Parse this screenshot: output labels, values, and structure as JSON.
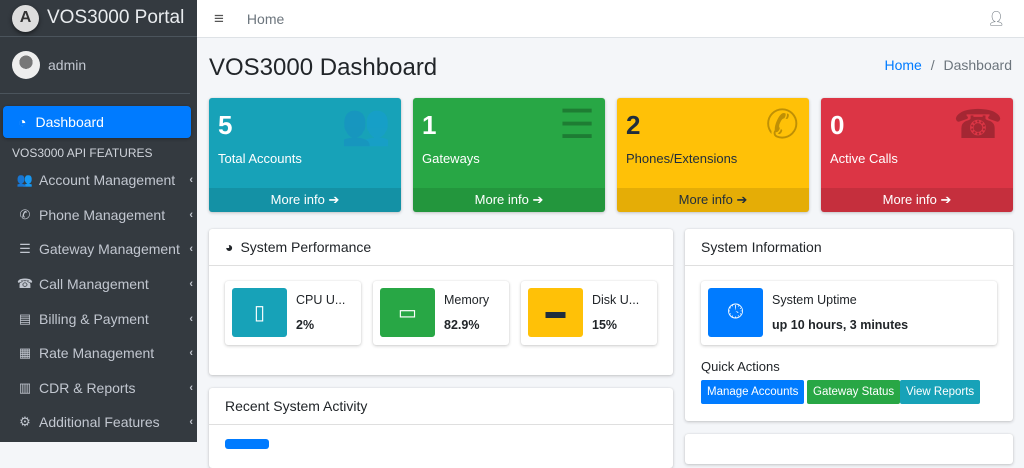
{
  "brand": {
    "name": "VOS3000 Portal",
    "logo_letter": "A"
  },
  "user": {
    "name": "admin"
  },
  "sidebar": {
    "active": "Dashboard",
    "header": "VOS3000 API FEATURES",
    "items": [
      {
        "label": "Account Management",
        "icon": "users-icon",
        "glyph": "👥"
      },
      {
        "label": "Phone Management",
        "icon": "phone-icon",
        "glyph": "✆"
      },
      {
        "label": "Gateway Management",
        "icon": "server-icon",
        "glyph": "☰"
      },
      {
        "label": "Call Management",
        "icon": "phone-square-icon",
        "glyph": "☎"
      },
      {
        "label": "Billing & Payment",
        "icon": "money-bill-icon",
        "glyph": "▤"
      },
      {
        "label": "Rate Management",
        "icon": "calculator-icon",
        "glyph": "▦"
      },
      {
        "label": "CDR & Reports",
        "icon": "chart-bar-icon",
        "glyph": "▥"
      },
      {
        "label": "Additional Features",
        "icon": "cogs-icon",
        "glyph": "⚙"
      }
    ]
  },
  "navbar": {
    "home": "Home"
  },
  "page": {
    "title": "VOS3000 Dashboard",
    "breadcrumb": {
      "home": "Home",
      "sep": "/",
      "current": "Dashboard"
    }
  },
  "small_boxes": [
    {
      "value": "5",
      "label": "Total Accounts",
      "footer": "More info ➔",
      "color": "#17a2b8",
      "icon": "users-icon",
      "glyph": "👥"
    },
    {
      "value": "1",
      "label": "Gateways",
      "footer": "More info ➔",
      "color": "#28a745",
      "icon": "server-icon",
      "glyph": "☰"
    },
    {
      "value": "2",
      "label": "Phones/Extensions",
      "footer": "More info ➔",
      "color": "#ffc107",
      "icon": "phone-icon",
      "glyph": "✆"
    },
    {
      "value": "0",
      "label": "Active Calls",
      "footer": "More info ➔",
      "color": "#dc3545",
      "icon": "phone-square-icon",
      "glyph": "☎"
    }
  ],
  "performance": {
    "title": "System Performance",
    "items": [
      {
        "label": "CPU U...",
        "value": "2%",
        "color": "#17a2b8",
        "icon": "microchip-icon",
        "glyph": "▯"
      },
      {
        "label": "Memory",
        "value": "82.9%",
        "color": "#28a745",
        "icon": "memory-icon",
        "glyph": "▭"
      },
      {
        "label": "Disk U...",
        "value": "15%",
        "color": "#ffc107",
        "icon": "hdd-icon",
        "glyph": "▬"
      }
    ]
  },
  "system_info": {
    "title": "System Information",
    "uptime_label": "System Uptime",
    "uptime_value": "up 10 hours, 3 minutes",
    "quick_actions": "Quick Actions",
    "buttons": [
      {
        "label": "Manage Accounts",
        "color": "#007bff"
      },
      {
        "label": "Gateway Status",
        "color": "#28a745"
      },
      {
        "label": "View Reports",
        "color": "#17a2b8"
      }
    ]
  },
  "activity": {
    "title": "Recent System Activity"
  }
}
